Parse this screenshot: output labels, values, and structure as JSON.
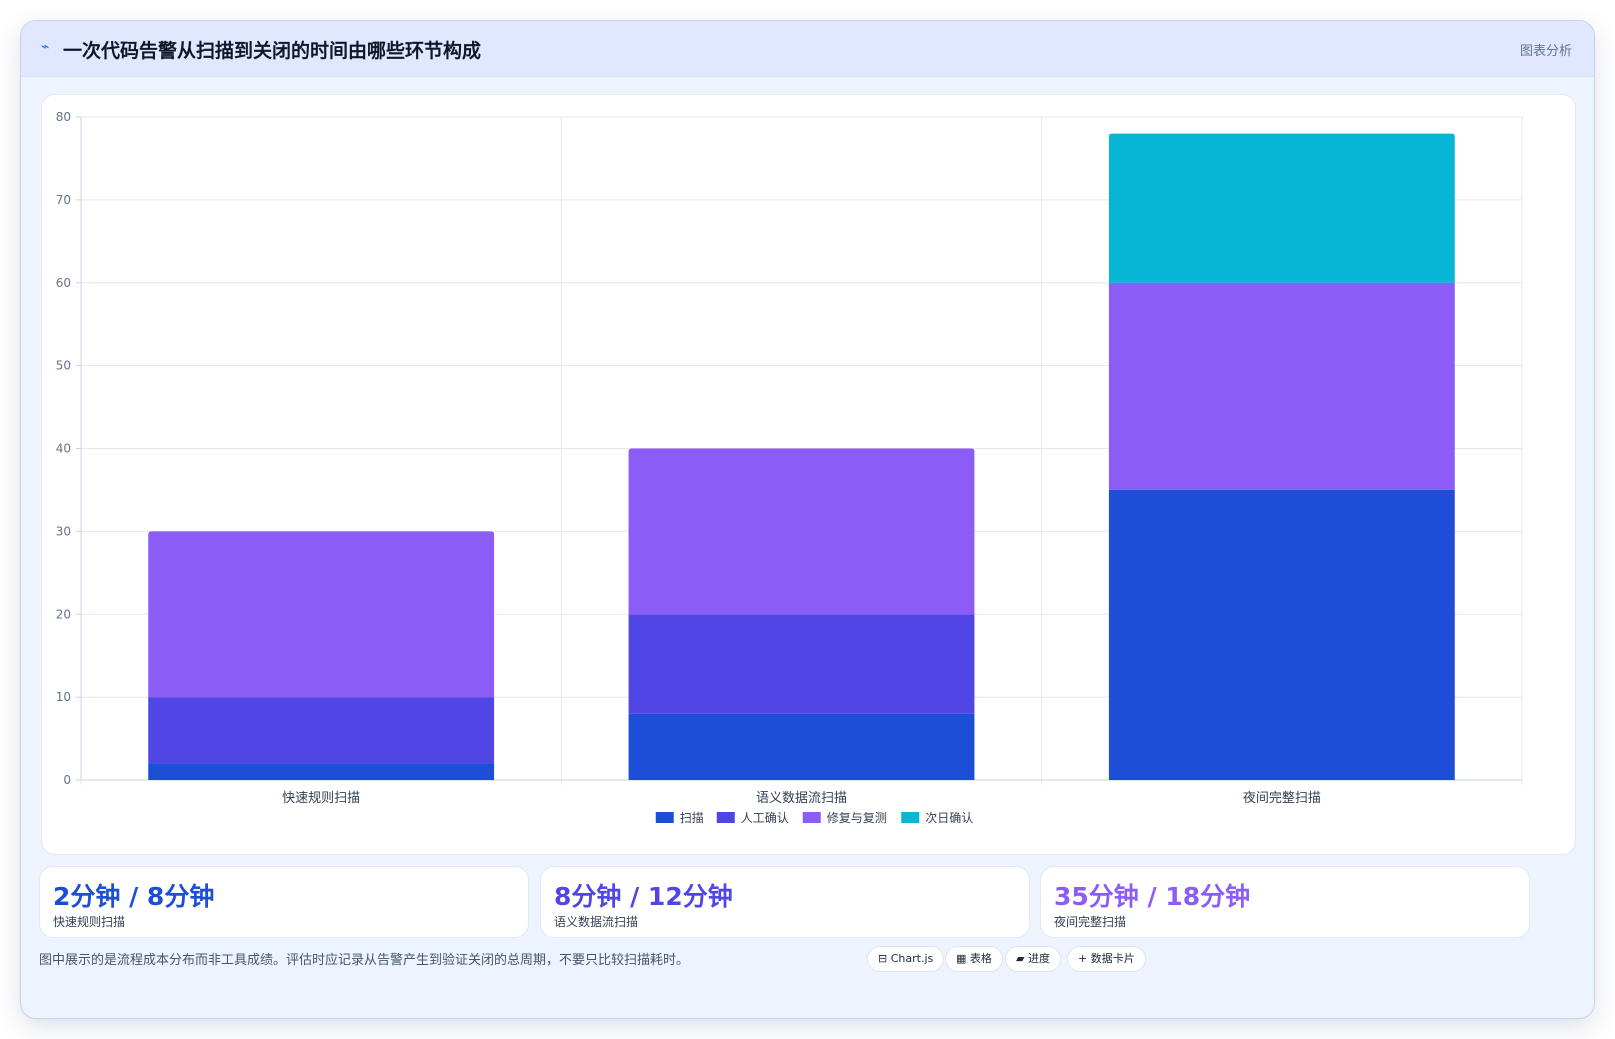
{
  "header": {
    "icon": "⌁",
    "title": "一次代码告警从扫描到关闭的时间由哪些环节构成",
    "tag": "图表分析"
  },
  "chart_data": {
    "type": "bar",
    "stacked": true,
    "categories": [
      "快速规则扫描",
      "语义数据流扫描",
      "夜间完整扫描"
    ],
    "series": [
      {
        "name": "扫描",
        "values": [
          2,
          8,
          35
        ],
        "color": "#1d4ed8"
      },
      {
        "name": "人工确认",
        "values": [
          8,
          12,
          0
        ],
        "color": "#4f46e5"
      },
      {
        "name": "修复与复测",
        "values": [
          20,
          20,
          25
        ],
        "color": "#8b5cf6"
      },
      {
        "name": "次日确认",
        "values": [
          0,
          0,
          18
        ],
        "color": "#06b6d4"
      }
    ],
    "ylim": [
      0,
      80
    ],
    "yticks": [
      0,
      10,
      20,
      30,
      40,
      50,
      60,
      70,
      80
    ],
    "grid": true,
    "legend": "bottom"
  },
  "stats": [
    {
      "value": "2分钟 / 8分钟",
      "label": "快速规则扫描",
      "color": "#1d4ed8"
    },
    {
      "value": "8分钟 / 12分钟",
      "label": "语义数据流扫描",
      "color": "#4f46e5"
    },
    {
      "value": "35分钟 / 18分钟",
      "label": "夜间完整扫描",
      "color": "#8b5cf6"
    }
  ],
  "note": "图中展示的是流程成本分布而非工具成绩。评估时应记录从告警产生到验证关闭的总周期，不要只比较扫描耗时。",
  "pills": [
    "⊟ Chart.js",
    "▦ 表格",
    "▰ 进度",
    "+ 数据卡片"
  ]
}
